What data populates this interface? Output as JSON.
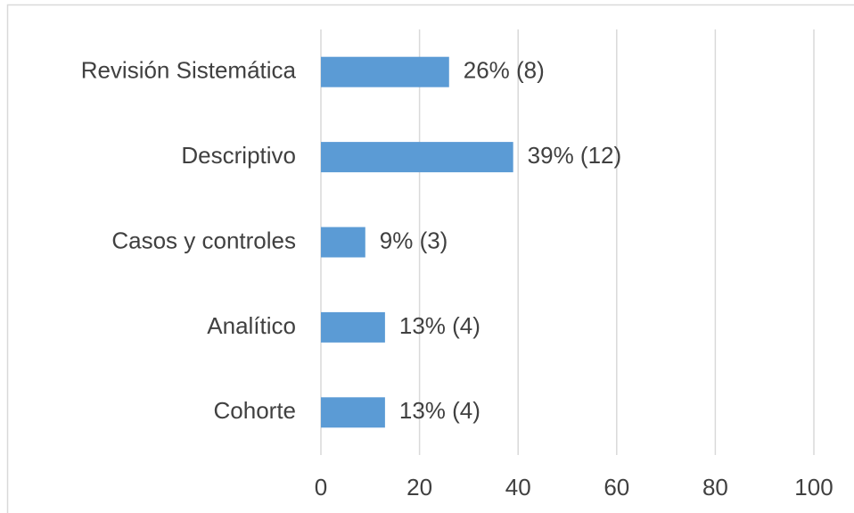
{
  "chart_data": {
    "type": "bar",
    "orientation": "horizontal",
    "categories": [
      "Revisión Sistemática",
      "Descriptivo",
      "Casos y controles",
      "Analítico",
      "Cohorte"
    ],
    "values": [
      26,
      39,
      9,
      13,
      13
    ],
    "value_labels": [
      "26% (8)",
      "39% (12)",
      "9% (3)",
      "13% (4)",
      "13% (4)"
    ],
    "color": "#5b9bd5",
    "xlim": [
      0,
      100
    ],
    "xticks": [
      0,
      20,
      40,
      60,
      80,
      100
    ],
    "grid": true
  }
}
